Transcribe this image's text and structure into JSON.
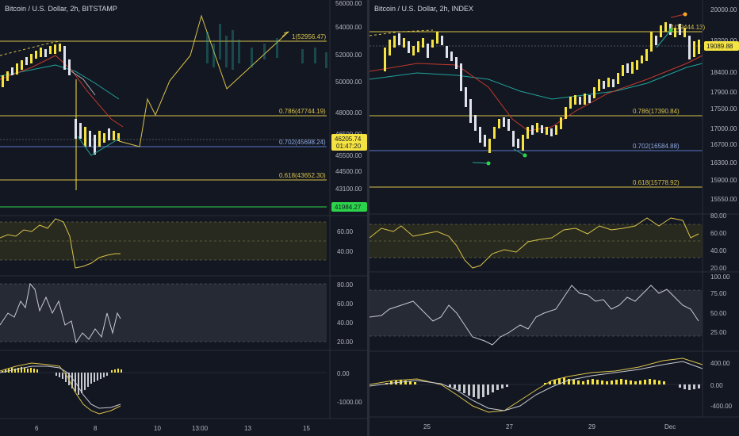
{
  "left": {
    "title": "Bitcoin / U.S. Dollar, 2h, BITSTAMP",
    "price_axis": [
      "56000.00",
      "54000.00",
      "52000.00",
      "50000.00",
      "48000.00",
      "46500.00",
      "45500.00",
      "44500.00",
      "43100.00"
    ],
    "fib_levels": [
      {
        "label": "1(52956.47)"
      },
      {
        "label": "0.786(47744.19)"
      },
      {
        "label": "0.702(45698.24)"
      },
      {
        "label": "0.618(43652.30)"
      }
    ],
    "current_price": "46205.74",
    "countdown": "01:47:20",
    "green_tag": "41984.27",
    "rsi_axis": [
      "60.00",
      "40.00"
    ],
    "stoch_axis": [
      "80.00",
      "60.00",
      "40.00",
      "20.00"
    ],
    "macd_axis": [
      "0.00",
      "-1000.00"
    ],
    "time_axis": [
      "6",
      "8",
      "10",
      "13:00",
      "13",
      "15"
    ]
  },
  "right": {
    "title": "Bitcoin / U.S. Dollar, 2h, INDEX",
    "price_axis": [
      "20000.00",
      "19200.00",
      "18400.00",
      "17900.00",
      "17500.00",
      "17000.00",
      "16700.00",
      "16300.00",
      "15900.00",
      "15550.00"
    ],
    "fib_levels": [
      {
        "label": "1(19444.13)"
      },
      {
        "label": "0.786(17390.84)"
      },
      {
        "label": "0.702(16584.88)"
      },
      {
        "label": "0.618(15778.92)"
      }
    ],
    "current_price": "19089.88",
    "rsi_axis": [
      "80.00",
      "60.00",
      "40.00",
      "20.00"
    ],
    "stoch_axis": [
      "100.00",
      "75.00",
      "50.00",
      "25.00"
    ],
    "macd_axis": [
      "400.00",
      "0.00",
      "-400.00"
    ],
    "time_axis": [
      "25",
      "27",
      "29",
      "Dec"
    ]
  },
  "colors": {
    "background": "#131722",
    "fib_yellow": "#d9c24a",
    "fib_blue": "#5b7ac9",
    "candle_green": "#26a69a",
    "candle_yellow": "#f5e342",
    "candle_white": "#e0e3eb",
    "price_tag_yellow": "#f5e342",
    "price_tag_green": "#2bd44a"
  }
}
